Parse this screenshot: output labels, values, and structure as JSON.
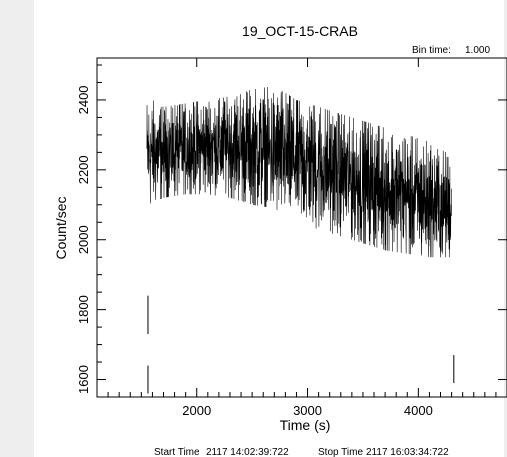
{
  "chart_data": {
    "type": "line",
    "title": "19_OCT-15-CRAB",
    "bin_time_label": "Bin time:",
    "bin_time_value": "1.000",
    "xlabel": "Time (s)",
    "ylabel": "Count/sec",
    "xlim": [
      1100,
      4800
    ],
    "ylim": [
      1550,
      2520
    ],
    "x_ticks": [
      2000,
      3000,
      4000
    ],
    "y_ticks": [
      1600,
      1800,
      2000,
      2200,
      2400
    ],
    "x_tick_labels": [
      "2000",
      "3000",
      "4000"
    ],
    "y_tick_labels": [
      "1600",
      "1800",
      "2000",
      "2200",
      "2400"
    ],
    "grid": false,
    "footer_start_label": "Start Time",
    "footer_start_value": "2117 14:02:39:722",
    "footer_stop_label": "Stop Time",
    "footer_stop_value": "2117 16:03:34:722",
    "series": [
      {
        "x": [
          1550,
          1700,
          1900,
          2100,
          2300,
          2500,
          2700,
          2900,
          3100,
          3300,
          3500,
          3700,
          3900,
          4100,
          4300
        ],
        "y": [
          2245,
          2250,
          2260,
          2268,
          2272,
          2262,
          2248,
          2232,
          2212,
          2188,
          2165,
          2145,
          2125,
          2108,
          2090
        ],
        "envelope": {
          "x": [
            1550,
            1700,
            1900,
            2100,
            2300,
            2500,
            2700,
            2900,
            3100,
            3300,
            3500,
            3700,
            3900,
            4100,
            4300
          ],
          "max": [
            2410,
            2380,
            2390,
            2400,
            2410,
            2430,
            2440,
            2400,
            2380,
            2360,
            2340,
            2320,
            2300,
            2280,
            2240
          ],
          "min": [
            2100,
            2120,
            2130,
            2130,
            2120,
            2100,
            2090,
            2050,
            2030,
            2010,
            1990,
            1970,
            1960,
            1950,
            1950
          ]
        }
      }
    ],
    "gap_marks": [
      {
        "x": 1560,
        "y_from": 1730,
        "y_to": 1840
      },
      {
        "x": 1560,
        "y_from": 1560,
        "y_to": 1640
      },
      {
        "x": 4320,
        "y_from": 1590,
        "y_to": 1670
      }
    ],
    "colors": {
      "line": "#000000",
      "axis": "#000000",
      "background": "#ffffff",
      "margin": "#eeeeee"
    }
  }
}
